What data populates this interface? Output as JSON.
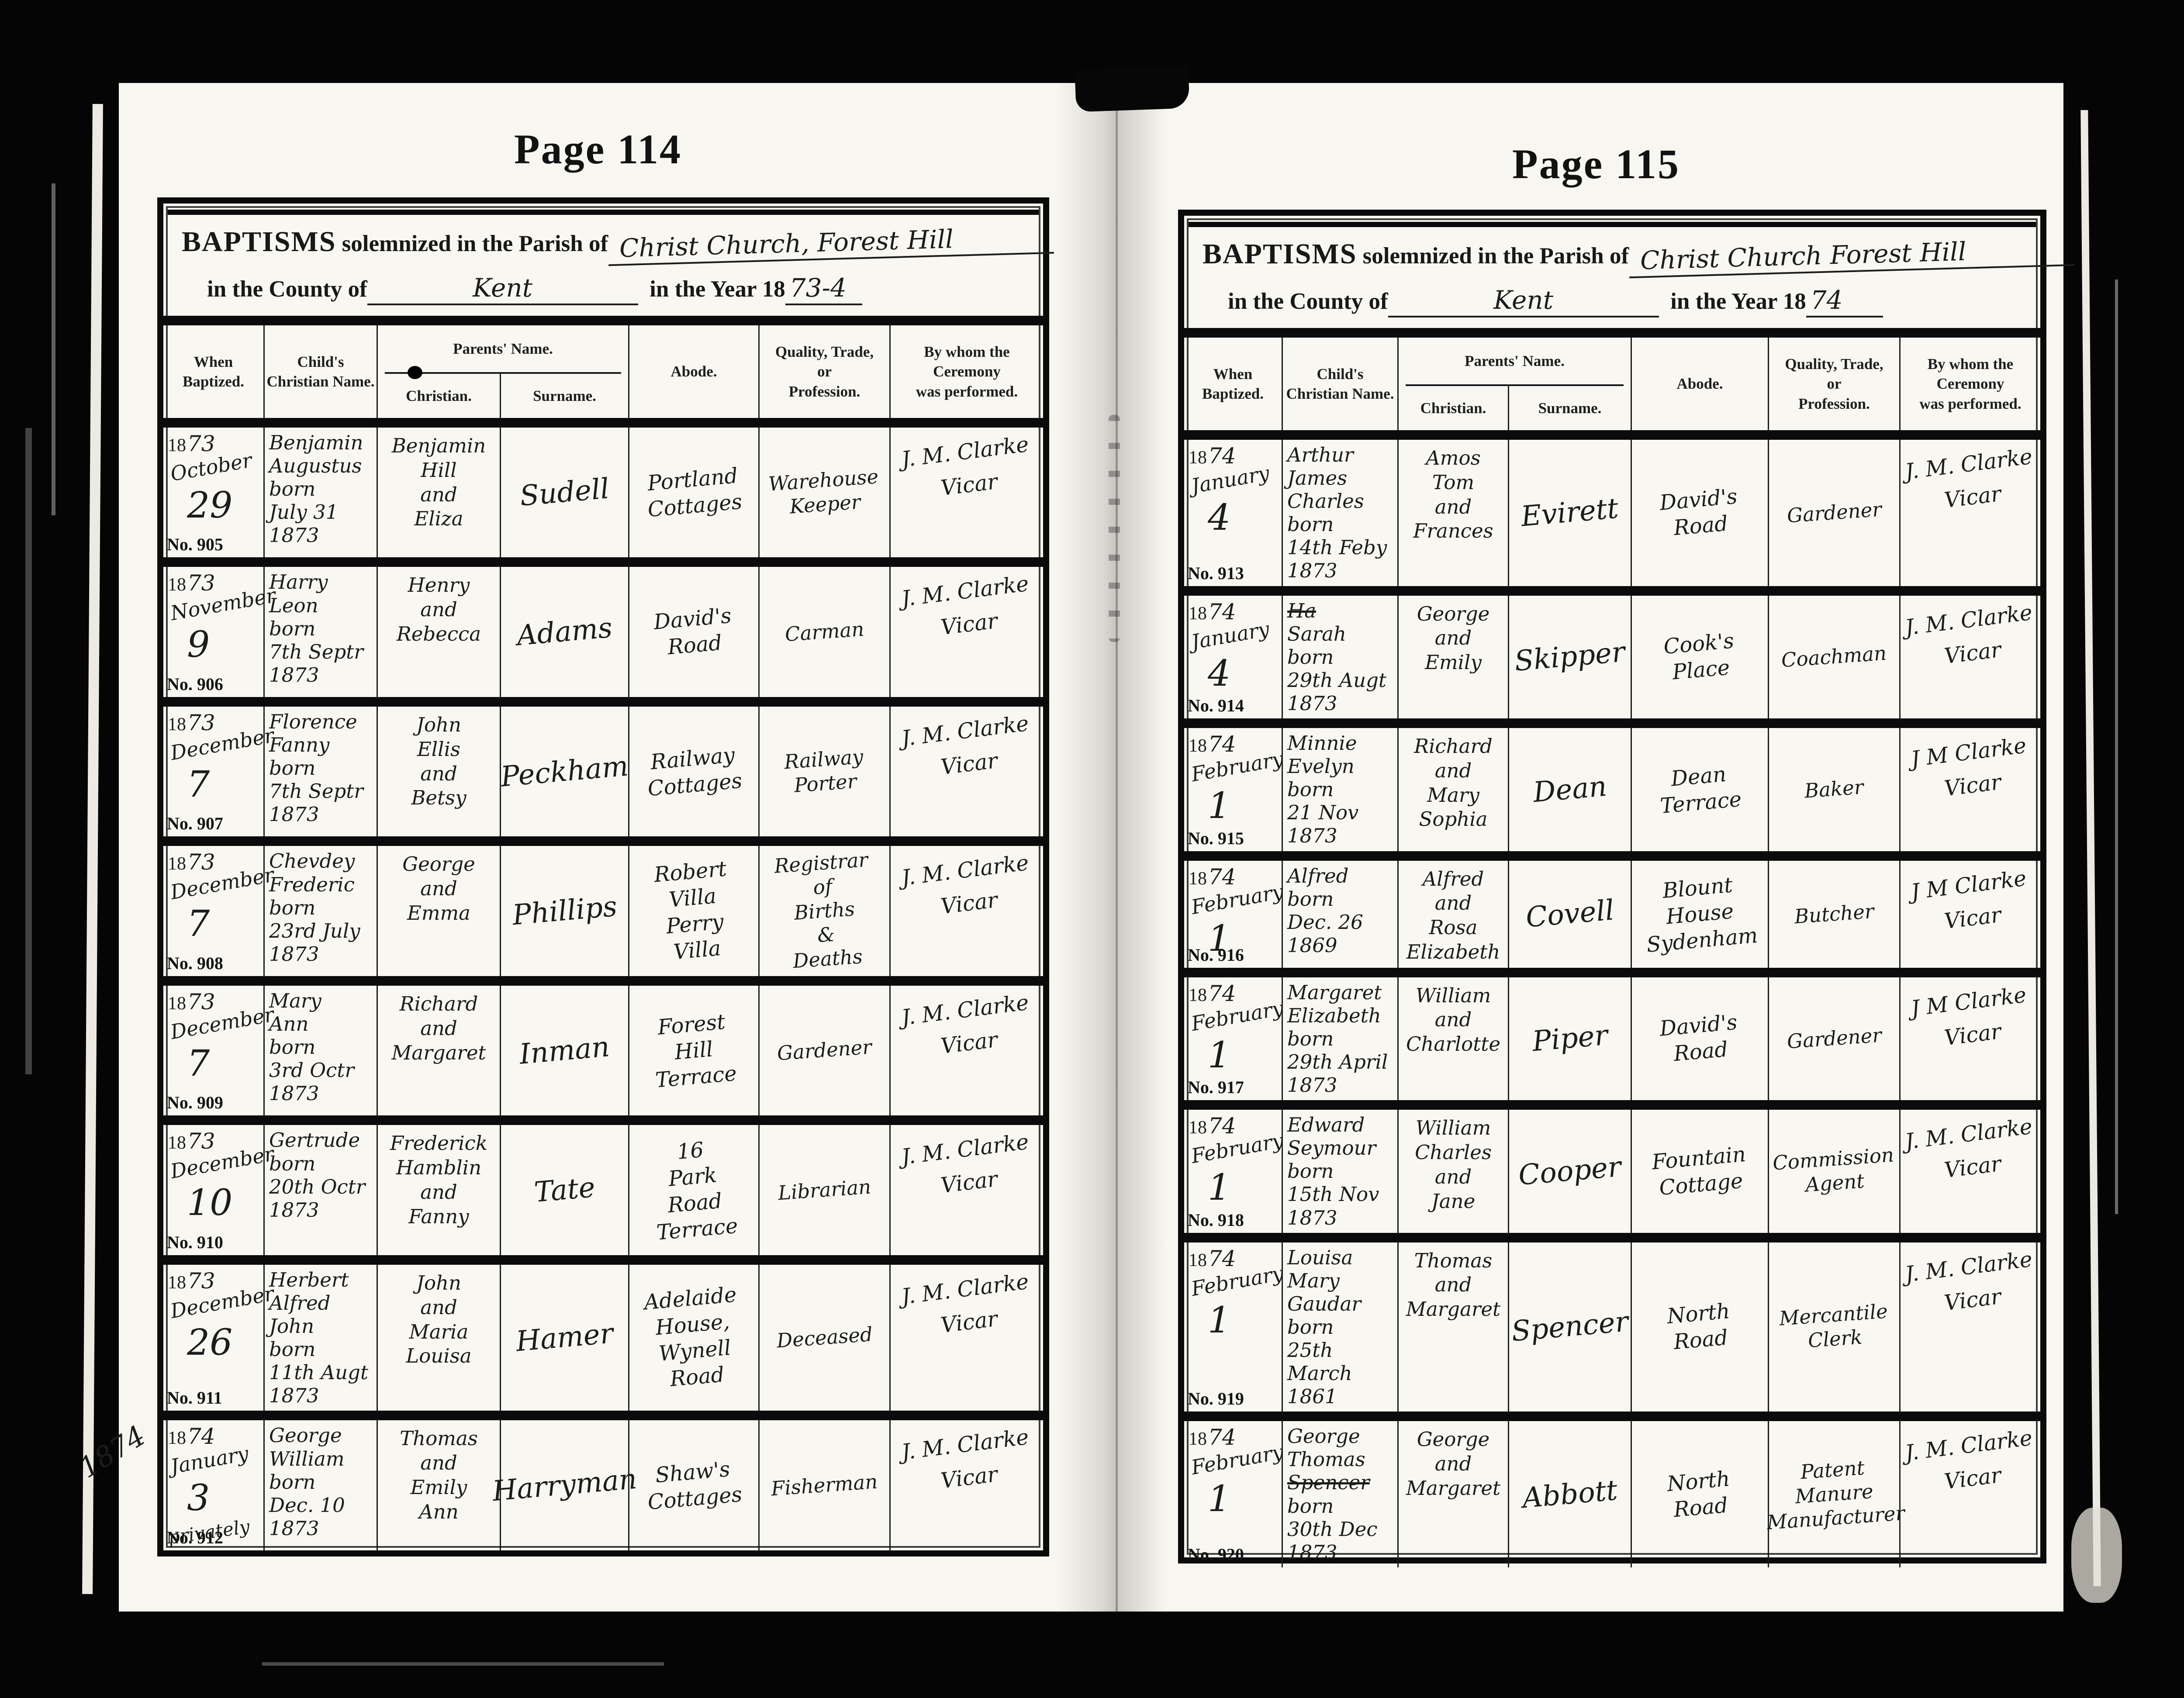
{
  "document": {
    "left_page": {
      "page_label": "Page 114",
      "form": {
        "baptisms_word": "BAPTISMS",
        "solemnized_text": "solemnized in the Parish of",
        "parish": "Christ Church, Forest Hill",
        "county_label": "in the County of",
        "county": "Kent",
        "year_label": "in the Year 18",
        "year": "73-4",
        "reg_year_prefix": "18"
      },
      "columns": {
        "when": "When\nBaptized.",
        "child": "Child's\nChristian Name.",
        "parents": "Parents' Name.",
        "parents_christian": "Christian.",
        "parents_surname": "Surname.",
        "abode": "Abode.",
        "quality": "Quality, Trade,\nor\nProfession.",
        "by_whom": "By whom the\nCeremony\nwas performed."
      },
      "rows": [
        {
          "year": "73",
          "month": "October",
          "day": "29",
          "child_a": "Benjamin\nAugustus\nborn\nJuly 31\n1873",
          "parents": "Benjamin\nHill\nand\nEliza",
          "surname": "Sudell",
          "abode": "Portland\nCottages",
          "quality": "Warehouse\nKeeper",
          "by": "J. M. Clarke\nVicar",
          "no": "No. 905"
        },
        {
          "year": "73",
          "month": "November",
          "day": "9",
          "child_a": "Harry\nLeon\nborn\n7th Septr\n1873",
          "parents": "Henry\nand\nRebecca",
          "surname": "Adams",
          "abode": "David's\nRoad",
          "quality": "Carman",
          "by": "J. M. Clarke\nVicar",
          "no": "No. 906"
        },
        {
          "year": "73",
          "month": "December",
          "day": "7",
          "child_a": "Florence\nFanny\nborn\n7th Septr\n1873",
          "parents": "John\nEllis\nand\nBetsy",
          "surname": "Peckham",
          "abode": "Railway\nCottages",
          "quality": "Railway\nPorter",
          "by": "J. M. Clarke\nVicar",
          "no": "No. 907"
        },
        {
          "year": "73",
          "month": "December",
          "day": "7",
          "child_a": "Chevdey\nFrederic\nborn\n23rd July\n1873",
          "parents": "George\nand\nEmma",
          "surname": "Phillips",
          "abode": "Robert\nVilla\nPerry\nVilla",
          "quality": "Registrar\nof\nBirths\n&\nDeaths",
          "by": "J. M. Clarke\nVicar",
          "no": "No. 908"
        },
        {
          "year": "73",
          "month": "December",
          "day": "7",
          "child_a": "Mary\nAnn\nborn\n3rd Octr\n1873",
          "parents": "Richard\nand\nMargaret",
          "surname": "Inman",
          "abode": "Forest\nHill\nTerrace",
          "quality": "Gardener",
          "by": "J. M. Clarke\nVicar",
          "no": "No. 909"
        },
        {
          "year": "73",
          "month": "December",
          "day": "10",
          "child_a": "Gertrude\nborn\n20th Octr\n1873",
          "parents": "Frederick\nHamblin\nand\nFanny",
          "surname": "Tate",
          "abode": "16\nPark\nRoad\nTerrace",
          "quality": "Librarian",
          "by": "J. M. Clarke\nVicar",
          "no": "No. 910"
        },
        {
          "year": "73",
          "month": "December",
          "day": "26",
          "child_a": "Herbert\nAlfred\nJohn\nborn\n11th Augt\n1873",
          "parents": "John\nand\nMaria\nLouisa",
          "surname": "Hamer",
          "abode": "Adelaide\nHouse,\nWynell\nRoad",
          "quality": "Deceased",
          "by": "J. M. Clarke\nVicar",
          "no": "No. 911"
        },
        {
          "year": "74",
          "month": "January",
          "day": "3",
          "privately": "privately",
          "margin": "1874",
          "child_a": "George\nWilliam\nborn\nDec. 10\n1873",
          "parents": "Thomas\nand\nEmily\nAnn",
          "surname": "Harryman",
          "abode": "Shaw's\nCottages",
          "quality": "Fisherman",
          "by": "J. M. Clarke\nVicar",
          "no": "No. 912"
        }
      ]
    },
    "right_page": {
      "page_label": "Page 115",
      "form": {
        "baptisms_word": "BAPTISMS",
        "solemnized_text": "solemnized in the Parish of",
        "parish": "Christ Church Forest Hill",
        "county_label": "in the County of",
        "county": "Kent",
        "year_label": "in the Year 18",
        "year": "74",
        "reg_year_prefix": "18"
      },
      "columns": {
        "when": "When\nBaptized.",
        "child": "Child's\nChristian Name.",
        "parents": "Parents' Name.",
        "parents_christian": "Christian.",
        "parents_surname": "Surname.",
        "abode": "Abode.",
        "quality": "Quality, Trade,\nor\nProfession.",
        "by_whom": "By whom  the\nCeremony\nwas performed."
      },
      "rows": [
        {
          "year": "74",
          "month": "January",
          "day": "4",
          "child_a": "Arthur\nJames\nCharles\nborn\n14th Feby\n1873",
          "parents": "Amos\nTom\nand\nFrances",
          "surname": "Evirett",
          "abode": "David's\nRoad",
          "quality": "Gardener",
          "by": "J. M. Clarke\nVicar",
          "no": "No. 913"
        },
        {
          "year": "74",
          "month": "January",
          "day": "4",
          "child_struck": "Ha",
          "child_b": "Sarah\nborn\n29th Augt\n1873",
          "parents": "George\nand\nEmily",
          "surname": "Skipper",
          "abode": "Cook's\nPlace",
          "quality": "Coachman",
          "by": "J. M. Clarke\nVicar",
          "no": "No. 914"
        },
        {
          "year": "74",
          "month": "February",
          "day": "1",
          "child_a": "Minnie\nEvelyn\nborn\n21 Nov\n1873",
          "parents": "Richard\nand\nMary\nSophia",
          "surname": "Dean",
          "abode": "Dean\nTerrace",
          "quality": "Baker",
          "by": "J M Clarke\nVicar",
          "no": "No. 915"
        },
        {
          "year": "74",
          "month": "February",
          "day": "1",
          "child_a": "Alfred\nborn\nDec. 26\n1869",
          "parents": "Alfred\nand\nRosa\nElizabeth",
          "surname": "Covell",
          "abode": "Blount\nHouse\nSydenham",
          "quality": "Butcher",
          "by": "J M Clarke\nVicar",
          "no": "No. 916"
        },
        {
          "year": "74",
          "month": "February",
          "day": "1",
          "child_a": "Margaret\nElizabeth\nborn\n29th April\n1873",
          "parents": "William\nand\nCharlotte",
          "surname": "Piper",
          "abode": "David's\nRoad",
          "quality": "Gardener",
          "by": "J M Clarke\nVicar",
          "no": "No. 917"
        },
        {
          "year": "74",
          "month": "February",
          "day": "1",
          "child_a": "Edward\nSeymour\nborn\n15th Nov\n1873",
          "parents": "William\nCharles\nand\nJane",
          "surname": "Cooper",
          "abode": "Fountain\nCottage",
          "quality": "Commission\nAgent",
          "by": "J. M. Clarke\nVicar",
          "no": "No. 918"
        },
        {
          "year": "74",
          "month": "February",
          "day": "1",
          "child_a": "Louisa\nMary\nGaudar\nborn\n25th March\n1861",
          "parents": "Thomas\nand\nMargaret",
          "surname": "Spencer",
          "abode": "North\nRoad",
          "quality": "Mercantile\nClerk",
          "by": "J. M. Clarke\nVicar",
          "no": "No. 919"
        },
        {
          "year": "74",
          "month": "February",
          "day": "1",
          "child_a": "George\nThomas",
          "child_struck": "Spencer",
          "child_b": "born\n30th Dec\n1873",
          "parents": "George\nand\nMargaret",
          "surname": "Abbott",
          "abode": "North\nRoad",
          "quality": "Patent\nManure\nManufacturer",
          "by": "J. M. Clarke\nVicar",
          "no": "No. 920"
        }
      ]
    }
  }
}
